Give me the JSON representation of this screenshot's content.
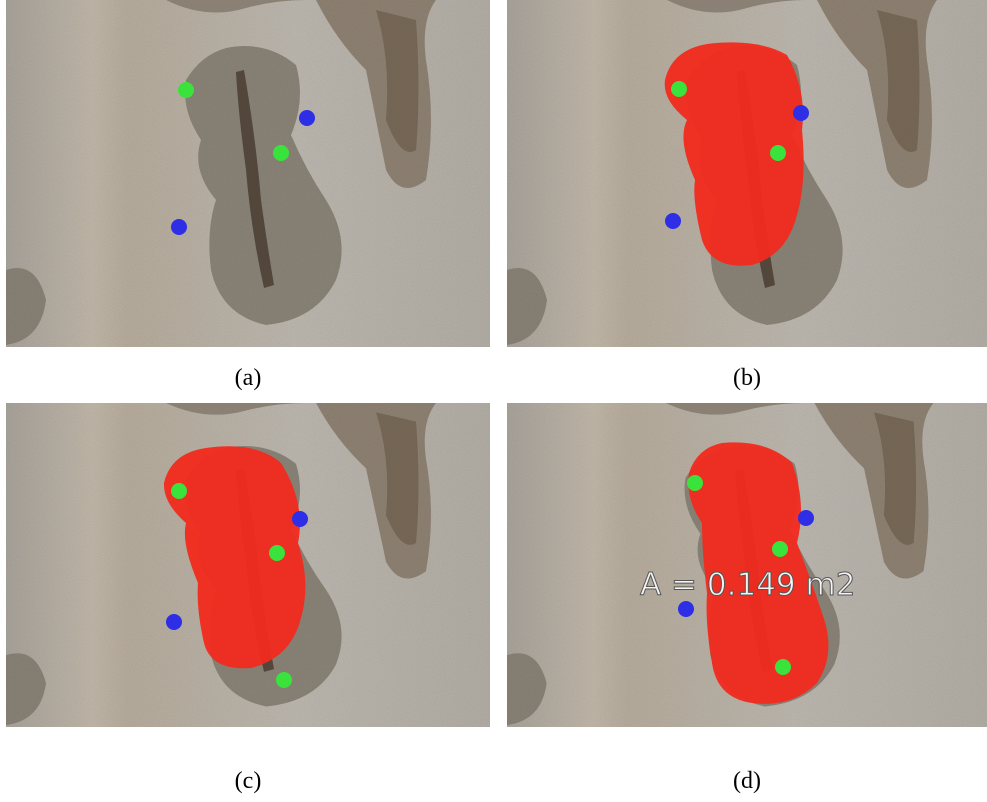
{
  "panels": [
    {
      "caption": "(a)"
    },
    {
      "caption": "(b)"
    },
    {
      "caption": "(c)"
    },
    {
      "caption": "(d)",
      "annotation": "A = 0.149 m2"
    }
  ]
}
